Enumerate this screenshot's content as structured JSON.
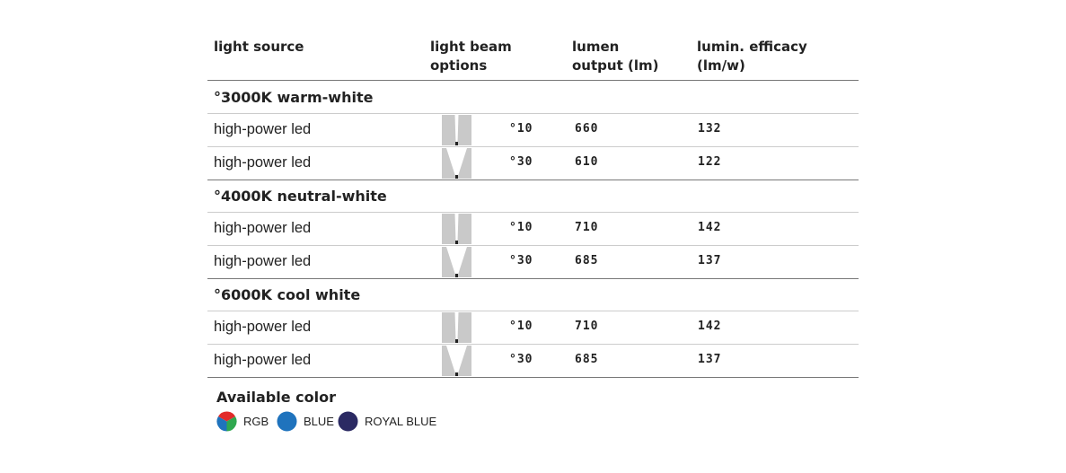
{
  "table": {
    "headers": [
      [
        "light source"
      ],
      [
        "light beam",
        "options"
      ],
      [
        "lumen",
        "output (lm)"
      ],
      [
        "lumin. efficacy",
        "(lm/w)"
      ]
    ],
    "groups": [
      {
        "title": "°3000K warm-white",
        "rows": [
          {
            "source": "high-power led",
            "beam": "°10",
            "lumen": 660,
            "efficacy": 132
          },
          {
            "source": "high-power led",
            "beam": "°30",
            "lumen": 610,
            "efficacy": 122
          }
        ]
      },
      {
        "title": "°4000K neutral-white",
        "rows": [
          {
            "source": "high-power led",
            "beam": "°10",
            "lumen": 710,
            "efficacy": 142
          },
          {
            "source": "high-power led",
            "beam": "°30",
            "lumen": 685,
            "efficacy": 137
          }
        ]
      },
      {
        "title": "°6000K cool white",
        "rows": [
          {
            "source": "high-power led",
            "beam": "°10",
            "lumen": 710,
            "efficacy": 142
          },
          {
            "source": "high-power led",
            "beam": "°30",
            "lumen": 685,
            "efficacy": 137
          }
        ]
      }
    ]
  },
  "colors": {
    "title": "Available color",
    "items": [
      {
        "label": "RGB"
      },
      {
        "label": "BLUE",
        "color": "#1f73bd"
      },
      {
        "label": "ROYAL BLUE",
        "color": "#2b2a63"
      }
    ]
  }
}
